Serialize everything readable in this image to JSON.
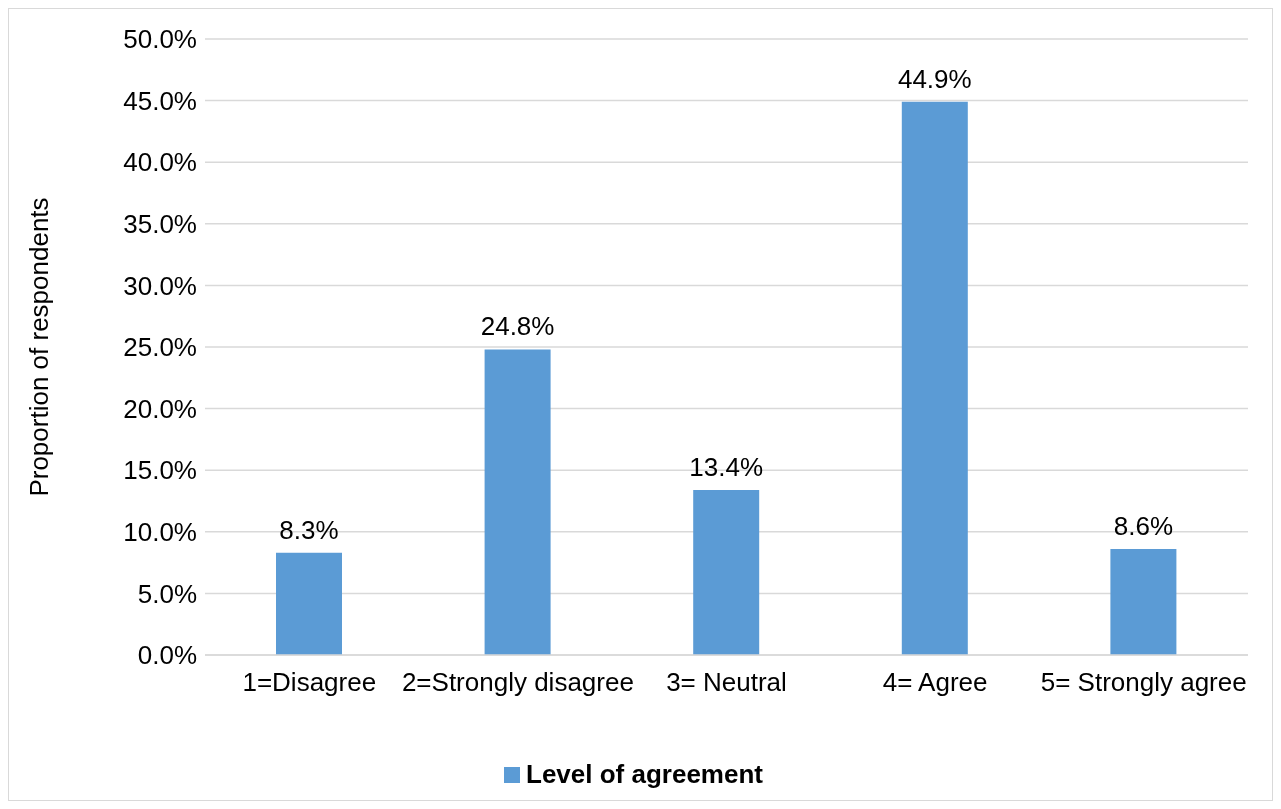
{
  "chart_data": {
    "type": "bar",
    "ylabel": "Proportion of respondents",
    "categories": [
      "1=Disagree",
      "2=Strongly disagree",
      "3= Neutral",
      "4= Agree",
      "5= Strongly agree"
    ],
    "series": [
      {
        "name": "Level of agreement",
        "color": "#5b9bd5",
        "values": [
          8.3,
          24.8,
          13.4,
          44.9,
          8.6
        ],
        "value_labels": [
          "8.3%",
          "24.8%",
          "13.4%",
          "44.9%",
          "8.6%"
        ]
      }
    ],
    "ylim": [
      0,
      50
    ],
    "yticks": [
      {
        "value": 0,
        "label": "0.0%"
      },
      {
        "value": 5,
        "label": "5.0%"
      },
      {
        "value": 10,
        "label": "10.0%"
      },
      {
        "value": 15,
        "label": "15.0%"
      },
      {
        "value": 20,
        "label": "20.0%"
      },
      {
        "value": 25,
        "label": "25.0%"
      },
      {
        "value": 30,
        "label": "30.0%"
      },
      {
        "value": 35,
        "label": "35.0%"
      },
      {
        "value": 40,
        "label": "40.0%"
      },
      {
        "value": 45,
        "label": "45.0%"
      },
      {
        "value": 50,
        "label": "50.0%"
      }
    ],
    "grid": "y",
    "legend": "bottom"
  }
}
